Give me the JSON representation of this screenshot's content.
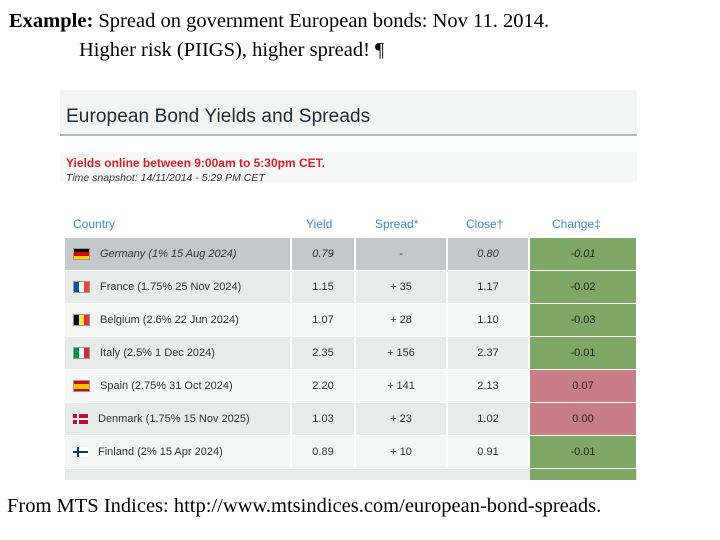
{
  "heading": {
    "label": "Example:",
    "line1": " Spread on government European bonds: Nov 11. 2014.",
    "line2": "Higher risk (PIIGS), higher spread! ¶"
  },
  "screenshot": {
    "title": "European Bond Yields and Spreads",
    "notice": "Yields online between 9:00am to 5:30pm CET.",
    "snapshot": "Time snapshot: 14/11/2014 - 5:29 PM CET",
    "columns": {
      "country": "Country",
      "yield": "Yield",
      "spread": "Spread*",
      "close": "Close†",
      "change": "Change‡"
    },
    "rows": [
      {
        "country": "Germany (1% 15 Aug 2024)",
        "yield": "0.79",
        "spread": "-",
        "close": "0.80",
        "change": "-0.01",
        "flag": "germany-flag-icon",
        "trend": "down"
      },
      {
        "country": "France (1.75% 25 Nov 2024)",
        "yield": "1.15",
        "spread": "+ 35",
        "close": "1.17",
        "change": "-0.02",
        "flag": "france-flag-icon",
        "trend": "down"
      },
      {
        "country": "Belgium (2.6% 22 Jun 2024)",
        "yield": "1.07",
        "spread": "+ 28",
        "close": "1.10",
        "change": "-0.03",
        "flag": "belgium-flag-icon",
        "trend": "down"
      },
      {
        "country": "Italy (2.5% 1 Dec 2024)",
        "yield": "2.35",
        "spread": "+ 156",
        "close": "2.37",
        "change": "-0.01",
        "flag": "italy-flag-icon",
        "trend": "down"
      },
      {
        "country": "Spain (2.75% 31 Oct 2024)",
        "yield": "2.20",
        "spread": "+ 141",
        "close": "2.13",
        "change": "0.07",
        "flag": "spain-flag-icon",
        "trend": "up"
      },
      {
        "country": "Denmark (1.75% 15 Nov 2025)",
        "yield": "1.03",
        "spread": "+ 23",
        "close": "1.02",
        "change": "0.00",
        "flag": "denmark-flag-icon",
        "trend": "up"
      },
      {
        "country": "Finland (2% 15 Apr 2024)",
        "yield": "0.89",
        "spread": "+ 10",
        "close": "0.91",
        "change": "-0.01",
        "flag": "finland-flag-icon",
        "trend": "down"
      }
    ],
    "colors": {
      "down": "#7fa765",
      "up": "#c97d86",
      "header_row": "#c5c8ca",
      "odd_row": "#e9ebeb",
      "even_row": "#f5f6f6",
      "notice": "#d8202a",
      "column_heading": "#3d8acb"
    }
  },
  "footer": {
    "text": "From MTS Indices: http://www.mtsindices.com/european-bond-spreads."
  }
}
